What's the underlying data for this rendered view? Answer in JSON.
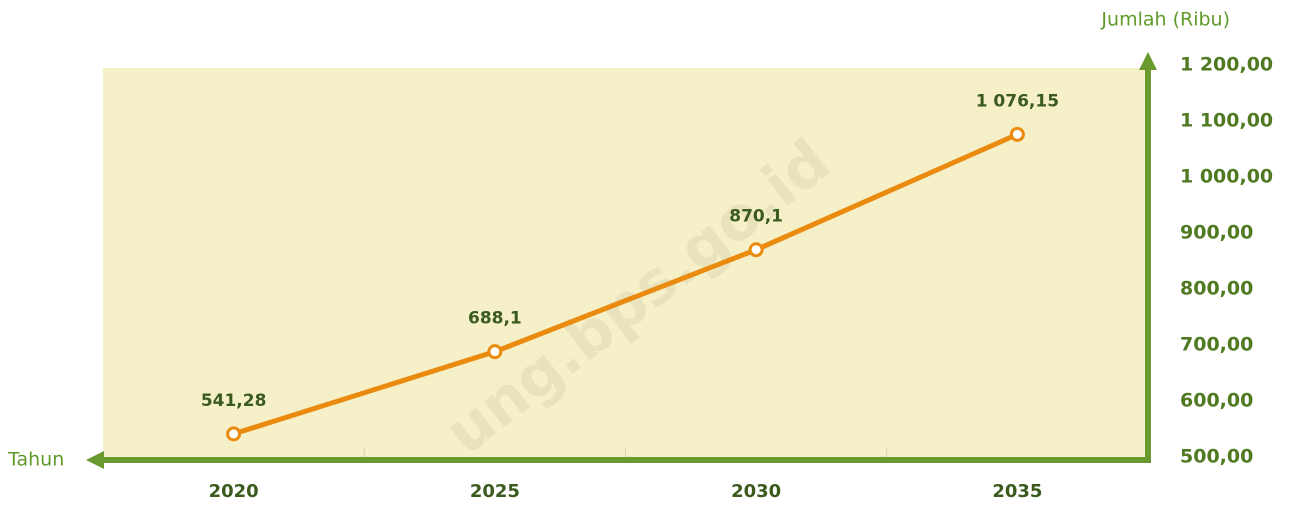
{
  "chart_data": {
    "type": "line",
    "categories": [
      "2020",
      "2025",
      "2030",
      "2035"
    ],
    "series": [
      {
        "name": "Jumlah",
        "color": "#ea8a0e",
        "values": [
          541.28,
          688.1,
          870.1,
          1076.15
        ],
        "value_labels": [
          "541,28",
          "688,1",
          "870,1",
          "1 076,15"
        ]
      }
    ],
    "ylim": [
      500,
      1200
    ],
    "yticks": [
      {
        "value": 500,
        "label": "500,00"
      },
      {
        "value": 600,
        "label": "600,00"
      },
      {
        "value": 700,
        "label": "700,00"
      },
      {
        "value": 800,
        "label": "800,00"
      },
      {
        "value": 900,
        "label": "900,00"
      },
      {
        "value": 1000,
        "label": "1 000,00"
      },
      {
        "value": 1100,
        "label": "1 100,00"
      },
      {
        "value": 1200,
        "label": "1 200,00"
      }
    ],
    "xlabel": "Tahun",
    "ylabel": "Jumlah (Ribu)",
    "watermark": "ung.bps.go.id",
    "axis_color": "#6a9a2f",
    "plot_background": "#f6f0c8"
  }
}
